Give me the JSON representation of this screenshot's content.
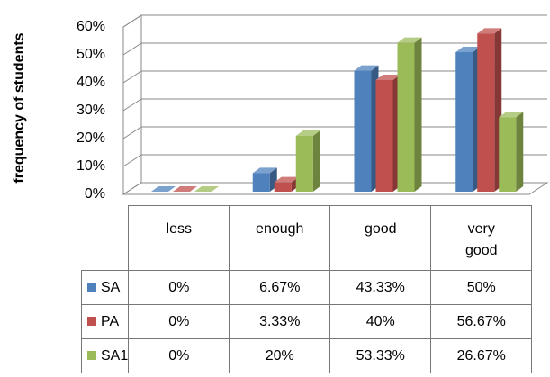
{
  "chart_data": {
    "type": "bar3d",
    "y_axis_label": "frequency of students",
    "categories": [
      "less",
      "enough",
      "good",
      "very good"
    ],
    "series": [
      {
        "name": "SA",
        "color": "#4f81bd",
        "values": [
          0,
          6.67,
          43.33,
          50
        ],
        "value_labels": [
          "0%",
          "6.67%",
          "43.33%",
          "50%"
        ]
      },
      {
        "name": "PA",
        "color": "#c0504d",
        "values": [
          0,
          3.33,
          40,
          56.67
        ],
        "value_labels": [
          "0%",
          "3.33%",
          "40%",
          "56.67%"
        ]
      },
      {
        "name": "SA1",
        "color": "#9bbb59",
        "values": [
          0,
          20,
          53.33,
          26.67
        ],
        "value_labels": [
          "0%",
          "20%",
          "53.33%",
          "26.67%"
        ]
      }
    ],
    "ylim": [
      0,
      60
    ],
    "yticks": [
      {
        "value": 0,
        "label": "0%"
      },
      {
        "value": 10,
        "label": "10%"
      },
      {
        "value": 20,
        "label": "20%"
      },
      {
        "value": 30,
        "label": "30%"
      },
      {
        "value": 40,
        "label": "40%"
      },
      {
        "value": 50,
        "label": "50%"
      },
      {
        "value": 60,
        "label": "60%"
      }
    ],
    "grid": true
  }
}
